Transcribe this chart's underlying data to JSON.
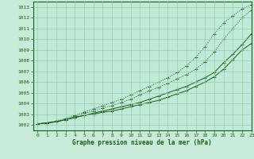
{
  "xlabel": "Graphe pression niveau de la mer (hPa)",
  "xlim": [
    -0.5,
    23
  ],
  "ylim": [
    1001.5,
    1013.5
  ],
  "yticks": [
    1002,
    1003,
    1004,
    1005,
    1006,
    1007,
    1008,
    1009,
    1010,
    1011,
    1012,
    1013
  ],
  "xticks": [
    0,
    1,
    2,
    3,
    4,
    5,
    6,
    7,
    8,
    9,
    10,
    11,
    12,
    13,
    14,
    15,
    16,
    17,
    18,
    19,
    20,
    21,
    22,
    23
  ],
  "bg_color": "#c8ead8",
  "plot_bg_color": "#c0ead8",
  "grid_color": "#a0c8b0",
  "line_color": "#1a5c1a",
  "line1_solid": [
    1002.1,
    1002.2,
    1002.3,
    1002.5,
    1002.7,
    1002.9,
    1003.0,
    1003.2,
    1003.3,
    1003.5,
    1003.7,
    1003.9,
    1004.1,
    1004.3,
    1004.6,
    1004.9,
    1005.2,
    1005.6,
    1006.0,
    1006.5,
    1007.2,
    1008.1,
    1009.0,
    1009.6
  ],
  "line2_solid": [
    1002.1,
    1002.2,
    1002.3,
    1002.5,
    1002.7,
    1002.9,
    1003.1,
    1003.3,
    1003.5,
    1003.7,
    1003.9,
    1004.1,
    1004.4,
    1004.7,
    1005.0,
    1005.3,
    1005.6,
    1006.0,
    1006.4,
    1006.9,
    1007.8,
    1008.6,
    1009.5,
    1010.5
  ],
  "line3_dotted": [
    1002.1,
    1002.2,
    1002.3,
    1002.5,
    1002.8,
    1003.1,
    1003.3,
    1003.6,
    1003.8,
    1004.1,
    1004.4,
    1004.8,
    1005.2,
    1005.5,
    1005.9,
    1006.3,
    1006.7,
    1007.2,
    1007.9,
    1008.8,
    1010.0,
    1011.0,
    1012.0,
    1012.7
  ],
  "line4_dotted": [
    1002.1,
    1002.2,
    1002.4,
    1002.6,
    1002.9,
    1003.2,
    1003.5,
    1003.8,
    1004.1,
    1004.4,
    1004.8,
    1005.2,
    1005.6,
    1006.0,
    1006.4,
    1006.9,
    1007.5,
    1008.3,
    1009.3,
    1010.5,
    1011.5,
    1012.2,
    1012.8,
    1013.2
  ]
}
